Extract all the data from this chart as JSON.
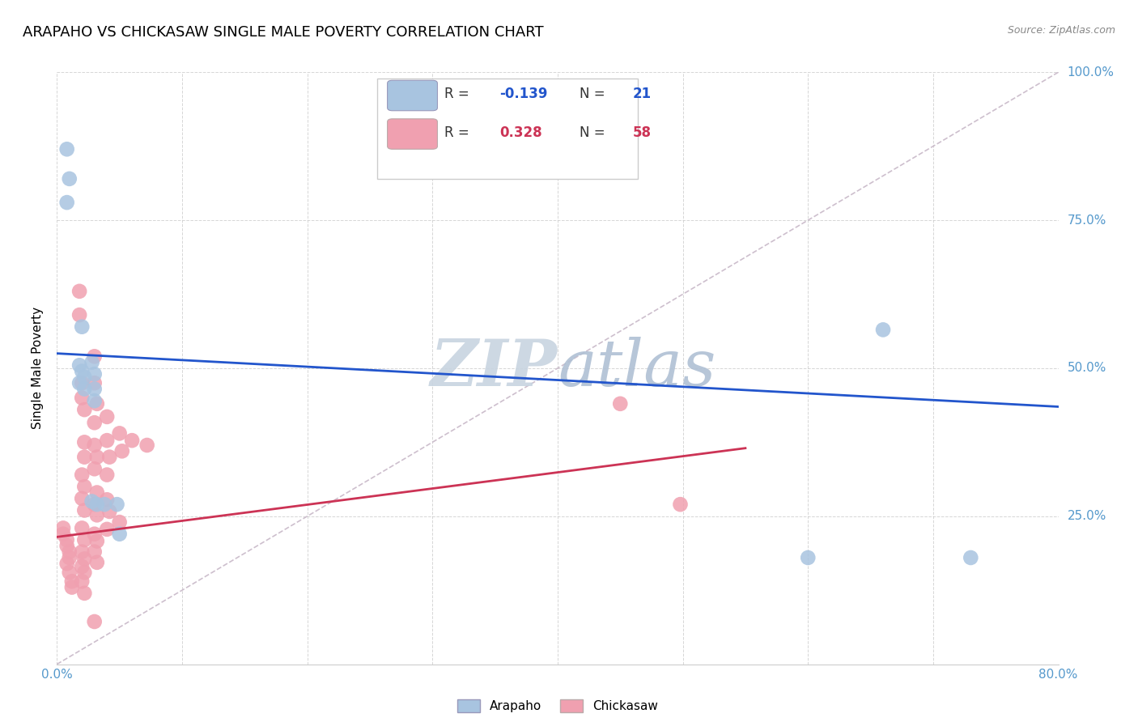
{
  "title": "ARAPAHO VS CHICKASAW SINGLE MALE POVERTY CORRELATION CHART",
  "source": "Source: ZipAtlas.com",
  "ylabel": "Single Male Poverty",
  "xlim": [
    0.0,
    0.8
  ],
  "ylim": [
    0.0,
    1.0
  ],
  "arapaho_label": "Arapaho",
  "chickasaw_label": "Chickasaw",
  "arapaho_R": "-0.139",
  "arapaho_N": "21",
  "chickasaw_R": "0.328",
  "chickasaw_N": "58",
  "arapaho_color": "#a8c4e0",
  "chickasaw_color": "#f0a0b0",
  "arapaho_line_color": "#2255cc",
  "chickasaw_line_color": "#cc3355",
  "diagonal_line_color": "#c8b8c8",
  "watermark_zip_color": "#c8d0dc",
  "watermark_atlas_color": "#b8c8d8",
  "arapaho_points": [
    [
      0.008,
      0.87
    ],
    [
      0.01,
      0.82
    ],
    [
      0.008,
      0.78
    ],
    [
      0.02,
      0.57
    ],
    [
      0.018,
      0.505
    ],
    [
      0.02,
      0.495
    ],
    [
      0.022,
      0.485
    ],
    [
      0.018,
      0.475
    ],
    [
      0.022,
      0.465
    ],
    [
      0.028,
      0.51
    ],
    [
      0.03,
      0.49
    ],
    [
      0.03,
      0.465
    ],
    [
      0.03,
      0.445
    ],
    [
      0.028,
      0.275
    ],
    [
      0.032,
      0.27
    ],
    [
      0.038,
      0.27
    ],
    [
      0.048,
      0.27
    ],
    [
      0.05,
      0.22
    ],
    [
      0.6,
      0.18
    ],
    [
      0.66,
      0.565
    ],
    [
      0.73,
      0.18
    ]
  ],
  "chickasaw_points": [
    [
      0.005,
      0.23
    ],
    [
      0.005,
      0.22
    ],
    [
      0.008,
      0.21
    ],
    [
      0.008,
      0.2
    ],
    [
      0.01,
      0.19
    ],
    [
      0.01,
      0.18
    ],
    [
      0.008,
      0.17
    ],
    [
      0.01,
      0.155
    ],
    [
      0.012,
      0.14
    ],
    [
      0.012,
      0.13
    ],
    [
      0.018,
      0.63
    ],
    [
      0.018,
      0.59
    ],
    [
      0.02,
      0.475
    ],
    [
      0.02,
      0.45
    ],
    [
      0.022,
      0.43
    ],
    [
      0.022,
      0.375
    ],
    [
      0.022,
      0.35
    ],
    [
      0.02,
      0.32
    ],
    [
      0.022,
      0.3
    ],
    [
      0.02,
      0.28
    ],
    [
      0.022,
      0.26
    ],
    [
      0.02,
      0.23
    ],
    [
      0.022,
      0.21
    ],
    [
      0.02,
      0.19
    ],
    [
      0.022,
      0.178
    ],
    [
      0.02,
      0.165
    ],
    [
      0.022,
      0.155
    ],
    [
      0.02,
      0.14
    ],
    [
      0.022,
      0.12
    ],
    [
      0.03,
      0.52
    ],
    [
      0.03,
      0.475
    ],
    [
      0.032,
      0.44
    ],
    [
      0.03,
      0.408
    ],
    [
      0.03,
      0.37
    ],
    [
      0.032,
      0.35
    ],
    [
      0.03,
      0.33
    ],
    [
      0.032,
      0.29
    ],
    [
      0.03,
      0.27
    ],
    [
      0.032,
      0.252
    ],
    [
      0.03,
      0.22
    ],
    [
      0.032,
      0.208
    ],
    [
      0.03,
      0.19
    ],
    [
      0.032,
      0.172
    ],
    [
      0.03,
      0.072
    ],
    [
      0.04,
      0.418
    ],
    [
      0.04,
      0.378
    ],
    [
      0.042,
      0.35
    ],
    [
      0.04,
      0.32
    ],
    [
      0.04,
      0.278
    ],
    [
      0.042,
      0.258
    ],
    [
      0.04,
      0.228
    ],
    [
      0.05,
      0.39
    ],
    [
      0.052,
      0.36
    ],
    [
      0.05,
      0.24
    ],
    [
      0.06,
      0.378
    ],
    [
      0.072,
      0.37
    ],
    [
      0.45,
      0.44
    ],
    [
      0.498,
      0.27
    ]
  ],
  "arapaho_line": [
    [
      0.0,
      0.525
    ],
    [
      0.8,
      0.435
    ]
  ],
  "chickasaw_line": [
    [
      0.0,
      0.215
    ],
    [
      0.55,
      0.365
    ]
  ],
  "background_color": "#ffffff",
  "grid_color": "#cccccc",
  "title_fontsize": 13,
  "axis_label_fontsize": 11,
  "right_tick_color": "#5599cc",
  "tick_label_fontsize": 11
}
